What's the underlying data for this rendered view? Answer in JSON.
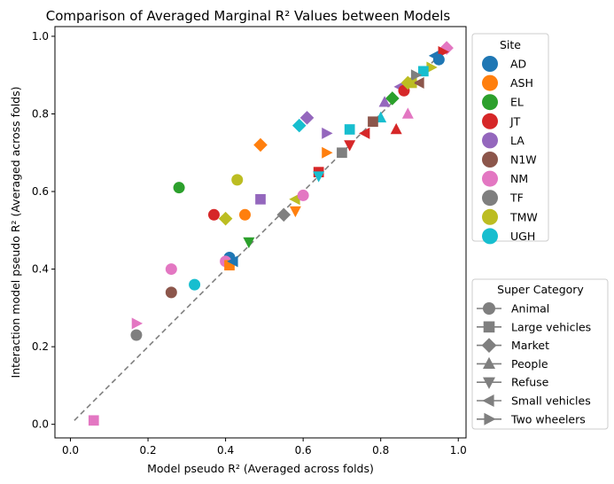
{
  "chart_data": {
    "type": "scatter",
    "title": "Comparison of Averaged Marginal R² Values between Models",
    "xlabel": "Model pseudo R² (Averaged across folds)",
    "ylabel": "Interaction model pseudo R² (Averaged across folds)",
    "xlim": [
      -0.04,
      1.02
    ],
    "ylim": [
      -0.035,
      1.025
    ],
    "xticks": [
      "0.0",
      "0.2",
      "0.4",
      "0.6",
      "0.8",
      "1.0"
    ],
    "yticks": [
      "0.0",
      "0.2",
      "0.4",
      "0.6",
      "0.8",
      "1.0"
    ],
    "grid": false,
    "reference_line": {
      "style": "dashed",
      "color": "#7f7f7f",
      "from": [
        0.01,
        0.01
      ],
      "to": [
        0.97,
        0.97
      ]
    },
    "legend_site": {
      "title": "Site",
      "placement": "upper-right-outside",
      "entries": [
        {
          "label": "AD",
          "color": "#1f77b4"
        },
        {
          "label": "ASH",
          "color": "#ff7f0e"
        },
        {
          "label": "EL",
          "color": "#2ca02c"
        },
        {
          "label": "JT",
          "color": "#d62728"
        },
        {
          "label": "LA",
          "color": "#9467bd"
        },
        {
          "label": "N1W",
          "color": "#8c564b"
        },
        {
          "label": "NM",
          "color": "#e377c2"
        },
        {
          "label": "TF",
          "color": "#7f7f7f"
        },
        {
          "label": "TMW",
          "color": "#bcbd22"
        },
        {
          "label": "UGH",
          "color": "#17becf"
        }
      ]
    },
    "legend_category": {
      "title": "Super Category",
      "placement": "lower-right-outside",
      "entries": [
        {
          "label": "Animal",
          "marker": "circle"
        },
        {
          "label": "Large vehicles",
          "marker": "square"
        },
        {
          "label": "Market",
          "marker": "diamond"
        },
        {
          "label": "People",
          "marker": "triangle-up"
        },
        {
          "label": "Refuse",
          "marker": "triangle-down"
        },
        {
          "label": "Small vehicles",
          "marker": "triangle-left"
        },
        {
          "label": "Two wheelers",
          "marker": "triangle-right"
        }
      ]
    },
    "points": [
      {
        "x": 0.28,
        "y": 0.61,
        "site": "EL",
        "marker": "circle"
      },
      {
        "x": 0.37,
        "y": 0.54,
        "site": "JT",
        "marker": "circle"
      },
      {
        "x": 0.45,
        "y": 0.54,
        "site": "ASH",
        "marker": "circle"
      },
      {
        "x": 0.43,
        "y": 0.63,
        "site": "TMW",
        "marker": "circle"
      },
      {
        "x": 0.41,
        "y": 0.43,
        "site": "AD",
        "marker": "circle"
      },
      {
        "x": 0.26,
        "y": 0.4,
        "site": "NM",
        "marker": "circle"
      },
      {
        "x": 0.26,
        "y": 0.34,
        "site": "N1W",
        "marker": "circle"
      },
      {
        "x": 0.32,
        "y": 0.36,
        "site": "UGH",
        "marker": "circle"
      },
      {
        "x": 0.17,
        "y": 0.23,
        "site": "TF",
        "marker": "circle"
      },
      {
        "x": 0.4,
        "y": 0.42,
        "site": "NM",
        "marker": "circle"
      },
      {
        "x": 0.06,
        "y": 0.01,
        "site": "NM",
        "marker": "square"
      },
      {
        "x": 0.41,
        "y": 0.41,
        "site": "ASH",
        "marker": "square"
      },
      {
        "x": 0.49,
        "y": 0.58,
        "site": "LA",
        "marker": "square"
      },
      {
        "x": 0.64,
        "y": 0.65,
        "site": "JT",
        "marker": "square"
      },
      {
        "x": 0.7,
        "y": 0.7,
        "site": "TF",
        "marker": "square"
      },
      {
        "x": 0.72,
        "y": 0.76,
        "site": "UGH",
        "marker": "square"
      },
      {
        "x": 0.88,
        "y": 0.88,
        "site": "TMW",
        "marker": "square"
      },
      {
        "x": 0.49,
        "y": 0.72,
        "site": "ASH",
        "marker": "diamond"
      },
      {
        "x": 0.61,
        "y": 0.79,
        "site": "LA",
        "marker": "diamond"
      },
      {
        "x": 0.59,
        "y": 0.77,
        "site": "UGH",
        "marker": "diamond"
      },
      {
        "x": 0.4,
        "y": 0.53,
        "site": "TMW",
        "marker": "diamond"
      },
      {
        "x": 0.55,
        "y": 0.54,
        "site": "TF",
        "marker": "diamond"
      },
      {
        "x": 0.83,
        "y": 0.84,
        "site": "EL",
        "marker": "diamond"
      },
      {
        "x": 0.97,
        "y": 0.97,
        "site": "NM",
        "marker": "diamond"
      },
      {
        "x": 0.84,
        "y": 0.76,
        "site": "JT",
        "marker": "triangle-up"
      },
      {
        "x": 0.87,
        "y": 0.8,
        "site": "NM",
        "marker": "triangle-up"
      },
      {
        "x": 0.8,
        "y": 0.79,
        "site": "UGH",
        "marker": "triangle-up"
      },
      {
        "x": 0.81,
        "y": 0.83,
        "site": "LA",
        "marker": "triangle-up"
      },
      {
        "x": 0.46,
        "y": 0.47,
        "site": "EL",
        "marker": "triangle-down"
      },
      {
        "x": 0.58,
        "y": 0.55,
        "site": "ASH",
        "marker": "triangle-down"
      },
      {
        "x": 0.64,
        "y": 0.64,
        "site": "UGH",
        "marker": "triangle-down"
      },
      {
        "x": 0.72,
        "y": 0.72,
        "site": "JT",
        "marker": "triangle-down"
      },
      {
        "x": 0.42,
        "y": 0.42,
        "site": "AD",
        "marker": "triangle-left"
      },
      {
        "x": 0.58,
        "y": 0.58,
        "site": "TMW",
        "marker": "triangle-left"
      },
      {
        "x": 0.76,
        "y": 0.75,
        "site": "JT",
        "marker": "triangle-left"
      },
      {
        "x": 0.85,
        "y": 0.87,
        "site": "LA",
        "marker": "triangle-left"
      },
      {
        "x": 0.9,
        "y": 0.88,
        "site": "N1W",
        "marker": "triangle-left"
      },
      {
        "x": 0.94,
        "y": 0.95,
        "site": "AD",
        "marker": "triangle-left"
      },
      {
        "x": 0.17,
        "y": 0.26,
        "site": "NM",
        "marker": "triangle-right"
      },
      {
        "x": 0.66,
        "y": 0.7,
        "site": "ASH",
        "marker": "triangle-right"
      },
      {
        "x": 0.66,
        "y": 0.75,
        "site": "LA",
        "marker": "triangle-right"
      },
      {
        "x": 0.93,
        "y": 0.92,
        "site": "TMW",
        "marker": "triangle-right"
      },
      {
        "x": 0.96,
        "y": 0.96,
        "site": "JT",
        "marker": "triangle-right"
      },
      {
        "x": 0.6,
        "y": 0.59,
        "site": "NM",
        "marker": "circle"
      },
      {
        "x": 0.78,
        "y": 0.78,
        "site": "N1W",
        "marker": "square"
      },
      {
        "x": 0.86,
        "y": 0.86,
        "site": "JT",
        "marker": "circle"
      },
      {
        "x": 0.91,
        "y": 0.91,
        "site": "UGH",
        "marker": "square"
      },
      {
        "x": 0.89,
        "y": 0.9,
        "site": "TF",
        "marker": "triangle-right"
      },
      {
        "x": 0.95,
        "y": 0.94,
        "site": "AD",
        "marker": "circle"
      },
      {
        "x": 0.87,
        "y": 0.88,
        "site": "TMW",
        "marker": "diamond"
      }
    ]
  }
}
